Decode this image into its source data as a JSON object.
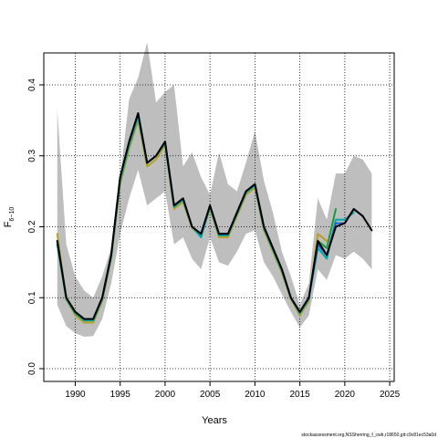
{
  "chart_data": {
    "type": "line",
    "title": "",
    "xlabel": "Years",
    "ylabel_main": "F",
    "ylabel_sub": "6−10",
    "xlim": [
      1986.5,
      2025.5
    ],
    "ylim": [
      -0.018,
      0.445
    ],
    "x_ticks": [
      1990,
      1995,
      2000,
      2005,
      2010,
      2015,
      2020,
      2025
    ],
    "x_tick_labels": [
      "1990",
      "1995",
      "2000",
      "2005",
      "2010",
      "2015",
      "2020",
      "2025"
    ],
    "y_ticks": [
      0.0,
      0.1,
      0.2,
      0.3,
      0.4
    ],
    "y_tick_labels": [
      "0.0",
      "0.1",
      "0.2",
      "0.3",
      "0.4"
    ],
    "grid": true,
    "band": {
      "x": [
        1988,
        1989,
        1990,
        1991,
        1992,
        1993,
        1994,
        1995,
        1996,
        1997,
        1998,
        1999,
        2000,
        2001,
        2002,
        2003,
        2004,
        2005,
        2006,
        2007,
        2008,
        2009,
        2010,
        2011,
        2012,
        2013,
        2014,
        2015,
        2016,
        2017,
        2018,
        2019,
        2020,
        2021,
        2022,
        2023
      ],
      "lower": [
        0.09,
        0.06,
        0.05,
        0.045,
        0.046,
        0.07,
        0.12,
        0.19,
        0.24,
        0.28,
        0.23,
        0.24,
        0.25,
        0.175,
        0.185,
        0.155,
        0.14,
        0.185,
        0.15,
        0.145,
        0.165,
        0.19,
        0.195,
        0.15,
        0.13,
        0.105,
        0.08,
        0.058,
        0.075,
        0.14,
        0.125,
        0.16,
        0.155,
        0.165,
        0.155,
        0.14
      ],
      "upper": [
        0.365,
        0.175,
        0.13,
        0.11,
        0.1,
        0.13,
        0.17,
        0.27,
        0.38,
        0.41,
        0.46,
        0.375,
        0.39,
        0.4,
        0.285,
        0.305,
        0.27,
        0.245,
        0.305,
        0.26,
        0.25,
        0.29,
        0.335,
        0.265,
        0.22,
        0.165,
        0.13,
        0.09,
        0.12,
        0.24,
        0.21,
        0.275,
        0.275,
        0.3,
        0.295,
        0.275
      ]
    },
    "series": [
      {
        "color": "#000000",
        "x": [
          1988,
          1989,
          1990,
          1991,
          1992,
          1993,
          1994,
          1995,
          1996,
          1997,
          1998,
          1999,
          2000,
          2001,
          2002,
          2003,
          2004,
          2005,
          2006,
          2007,
          2008,
          2009,
          2010,
          2011,
          2012,
          2013,
          2014,
          2015,
          2016,
          2017,
          2018,
          2019,
          2020,
          2021,
          2022,
          2023
        ],
        "values": [
          0.18,
          0.1,
          0.08,
          0.07,
          0.07,
          0.1,
          0.16,
          0.27,
          0.32,
          0.36,
          0.29,
          0.3,
          0.32,
          0.23,
          0.24,
          0.2,
          0.19,
          0.23,
          0.19,
          0.19,
          0.22,
          0.25,
          0.26,
          0.2,
          0.17,
          0.14,
          0.1,
          0.08,
          0.1,
          0.18,
          0.16,
          0.2,
          0.205,
          0.225,
          0.215,
          0.195
        ]
      },
      {
        "color": "#1f5fd0",
        "x": [
          1988,
          1989,
          1990,
          1991,
          1992,
          1993,
          1994,
          1995,
          1996,
          1997,
          1998,
          1999,
          2000,
          2001,
          2002,
          2003,
          2004,
          2005,
          2006,
          2007,
          2008,
          2009,
          2010,
          2011,
          2012,
          2013,
          2014,
          2015,
          2016,
          2017,
          2018,
          2019,
          2020,
          2021,
          2022
        ],
        "values": [
          0.18,
          0.1,
          0.08,
          0.07,
          0.07,
          0.1,
          0.16,
          0.27,
          0.32,
          0.36,
          0.29,
          0.3,
          0.32,
          0.23,
          0.24,
          0.2,
          0.19,
          0.23,
          0.19,
          0.19,
          0.22,
          0.25,
          0.26,
          0.2,
          0.17,
          0.14,
          0.1,
          0.08,
          0.1,
          0.175,
          0.16,
          0.205,
          0.205,
          0.225,
          0.215
        ]
      },
      {
        "color": "#00a8a8",
        "x": [
          1988,
          1989,
          1990,
          1991,
          1992,
          1993,
          1994,
          1995,
          1996,
          1997,
          1998,
          1999,
          2000,
          2001,
          2002,
          2003,
          2004,
          2005,
          2006,
          2007,
          2008,
          2009,
          2010,
          2011,
          2012,
          2013,
          2014,
          2015,
          2016,
          2017,
          2018,
          2019,
          2020,
          2021
        ],
        "values": [
          0.175,
          0.1,
          0.078,
          0.068,
          0.068,
          0.098,
          0.158,
          0.265,
          0.315,
          0.355,
          0.29,
          0.3,
          0.318,
          0.228,
          0.238,
          0.2,
          0.185,
          0.228,
          0.188,
          0.188,
          0.218,
          0.248,
          0.258,
          0.198,
          0.168,
          0.138,
          0.1,
          0.078,
          0.098,
          0.17,
          0.155,
          0.21,
          0.21,
          0.22
        ]
      },
      {
        "color": "#1a9a3a",
        "x": [
          1988,
          1989,
          1990,
          1991,
          1992,
          1993,
          1994,
          1995,
          1996,
          1997,
          1998,
          1999,
          2000,
          2001,
          2002,
          2003,
          2004,
          2005,
          2006,
          2007,
          2008,
          2009,
          2010,
          2011,
          2012,
          2013,
          2014,
          2015,
          2016,
          2017,
          2018,
          2019
        ],
        "values": [
          0.175,
          0.098,
          0.078,
          0.068,
          0.068,
          0.098,
          0.158,
          0.265,
          0.315,
          0.355,
          0.29,
          0.3,
          0.318,
          0.228,
          0.238,
          0.2,
          0.188,
          0.228,
          0.188,
          0.188,
          0.218,
          0.248,
          0.258,
          0.198,
          0.168,
          0.138,
          0.1,
          0.078,
          0.098,
          0.18,
          0.17,
          0.225
        ]
      },
      {
        "color": "#b8a020",
        "x": [
          1988,
          1989,
          1990,
          1991,
          1992,
          1993,
          1994,
          1995,
          1996,
          1997,
          1998,
          1999,
          2000,
          2001,
          2002,
          2003,
          2004,
          2005,
          2006,
          2007,
          2008,
          2009,
          2010,
          2011,
          2012,
          2013,
          2014,
          2015,
          2016,
          2017,
          2018
        ],
        "values": [
          0.19,
          0.098,
          0.075,
          0.065,
          0.065,
          0.095,
          0.155,
          0.26,
          0.31,
          0.35,
          0.285,
          0.295,
          0.315,
          0.225,
          0.235,
          0.198,
          0.188,
          0.225,
          0.185,
          0.185,
          0.215,
          0.245,
          0.255,
          0.195,
          0.165,
          0.135,
          0.098,
          0.075,
          0.095,
          0.19,
          0.18
        ]
      }
    ]
  },
  "footer": {
    "text": "stockassessment.org,NSSherring_f_cwb,r18650,git:c9c81ec53a0d"
  }
}
